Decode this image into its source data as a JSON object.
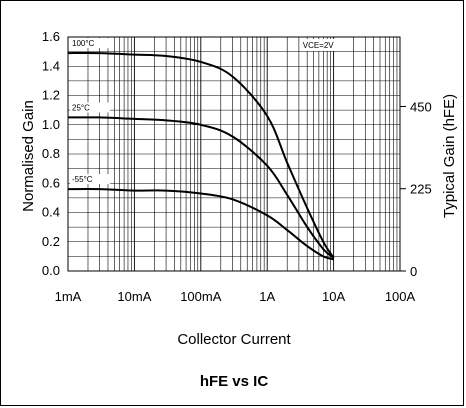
{
  "chart_data": {
    "type": "line",
    "title": "hFE vs IC",
    "xlabel": "Collector Current",
    "ylabel_left": "Normalised Gain",
    "ylabel_right": "Typical Gain  (hFE)",
    "x_scale": "log",
    "xlim": [
      0.001,
      100
    ],
    "x_ticks": [
      0.001,
      0.01,
      0.1,
      1,
      10,
      100
    ],
    "x_tick_labels": [
      "1mA",
      "10mA",
      "100mA",
      "1A",
      "10A",
      "100A"
    ],
    "ylim": [
      0,
      1.6
    ],
    "y_ticks": [
      0,
      0.2,
      0.4,
      0.6,
      0.8,
      1.0,
      1.2,
      1.4,
      1.6
    ],
    "y_tick_labels": [
      "0.0",
      "0.2",
      "0.4",
      "0.6",
      "0.8",
      "1.0",
      "1.2",
      "1.4",
      "1.6"
    ],
    "right_ylim": [
      0,
      640
    ],
    "right_ticks": [
      0,
      225,
      450
    ],
    "right_tick_labels": [
      "0",
      "225",
      "450"
    ],
    "grid": true,
    "annotation": "VCE=2V",
    "series": [
      {
        "name": "100°C",
        "x": [
          0.001,
          0.003,
          0.01,
          0.03,
          0.1,
          0.3,
          1,
          2,
          4,
          7,
          10
        ],
        "y": [
          1.49,
          1.49,
          1.48,
          1.47,
          1.43,
          1.33,
          1.06,
          0.74,
          0.43,
          0.2,
          0.09
        ]
      },
      {
        "name": "25°C",
        "x": [
          0.001,
          0.003,
          0.01,
          0.03,
          0.1,
          0.3,
          1,
          2,
          4,
          7,
          10
        ],
        "y": [
          1.05,
          1.05,
          1.04,
          1.03,
          1.0,
          0.92,
          0.72,
          0.52,
          0.3,
          0.15,
          0.09
        ]
      },
      {
        "name": "-55°C",
        "x": [
          0.001,
          0.003,
          0.01,
          0.03,
          0.1,
          0.3,
          1,
          2,
          4,
          7,
          10
        ],
        "y": [
          0.56,
          0.56,
          0.55,
          0.55,
          0.53,
          0.49,
          0.38,
          0.28,
          0.17,
          0.1,
          0.08
        ]
      }
    ]
  }
}
